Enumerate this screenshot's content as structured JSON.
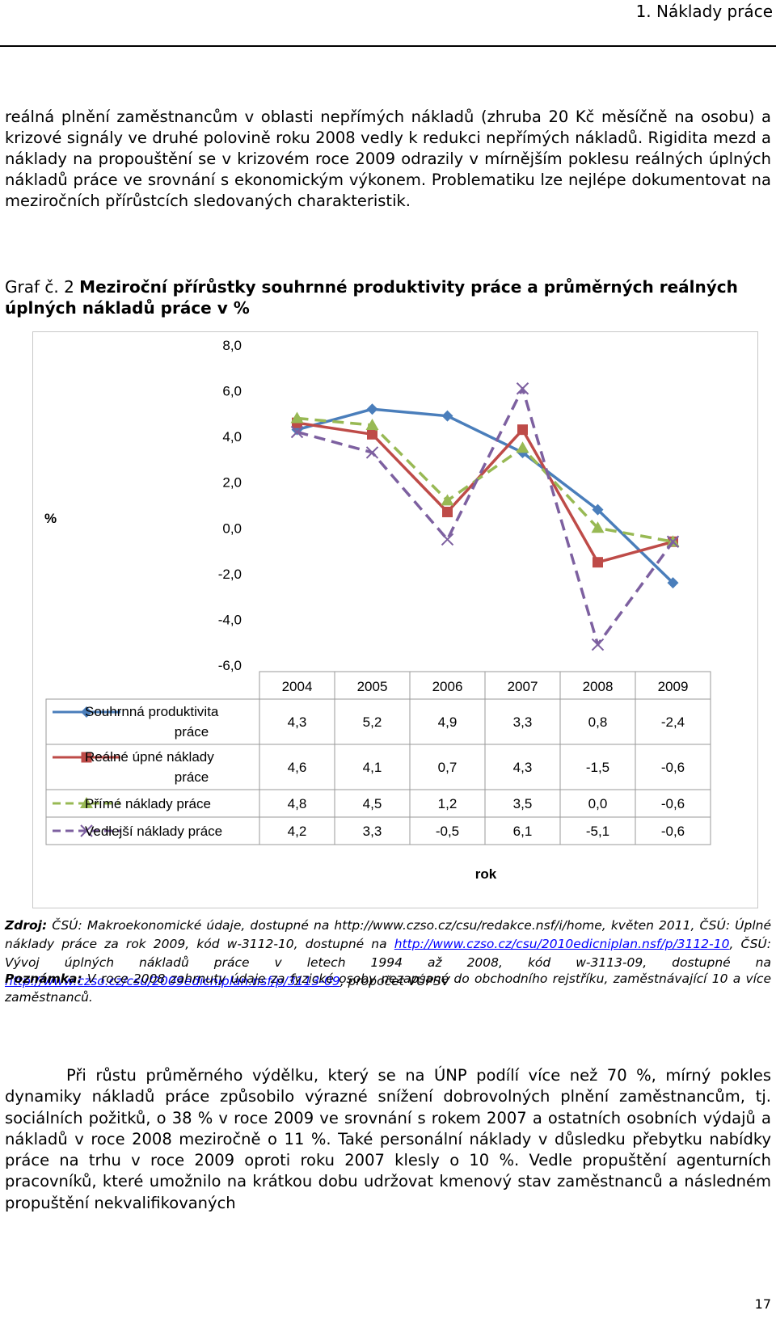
{
  "header": {
    "title": "1. Náklady práce"
  },
  "paragraph1": "reálná plnění zaměstnancům v oblasti nepřímých nákladů (zhruba 20 Kč měsíčně na osobu) a krizové signály ve druhé polovině roku 2008 vedly k redukci nepřímých nákladů. Rigidita mezd a náklady na propouštění se v krizovém roce 2009 odrazily v mírnějším poklesu reálných úplných nákladů práce ve srovnání s ekonomickým výko­nem. Problematiku lze nejlépe dokumentovat na meziročních přírůstcích sledovaných charakteristik.",
  "caption": {
    "prefix": "Graf č. 2 ",
    "title": "Meziroční přírůstky souhrnné produktivity práce a průměrných reálných úplných nákladů práce v %"
  },
  "chart_data": {
    "type": "line",
    "ylabel": "%",
    "xlabel": "rok",
    "ylim": [
      -6,
      8
    ],
    "yticks": [
      "8,0",
      "6,0",
      "4,0",
      "2,0",
      "0,0",
      "-2,0",
      "-4,0",
      "-6,0"
    ],
    "categories": [
      "2004",
      "2005",
      "2006",
      "2007",
      "2008",
      "2009"
    ],
    "series": [
      {
        "name": "Souhrnná produktivita práce",
        "values": [
          4.3,
          5.2,
          4.9,
          3.3,
          0.8,
          -2.4
        ],
        "labels": [
          "4,3",
          "5,2",
          "4,9",
          "3,3",
          "0,8",
          "-2,4"
        ],
        "color": "#4a7ebb",
        "marker": "diamond",
        "dash": ""
      },
      {
        "name": "Reálné úpné náklady práce",
        "values": [
          4.6,
          4.1,
          0.7,
          4.3,
          -1.5,
          -0.6
        ],
        "labels": [
          "4,6",
          "4,1",
          "0,7",
          "4,3",
          "-1,5",
          "-0,6"
        ],
        "color": "#be4b48",
        "marker": "square",
        "dash": ""
      },
      {
        "name": "Přímé náklady práce",
        "values": [
          4.8,
          4.5,
          1.2,
          3.5,
          0.0,
          -0.6
        ],
        "labels": [
          "4,8",
          "4,5",
          "1,2",
          "3,5",
          "0,0",
          "-0,6"
        ],
        "color": "#98b954",
        "marker": "triangle",
        "dash": "14,8"
      },
      {
        "name": "Vedlejší náklady práce",
        "values": [
          4.2,
          3.3,
          -0.5,
          6.1,
          -5.1,
          -0.6
        ],
        "labels": [
          "4,2",
          "3,3",
          "-0,5",
          "6,1",
          "-5,1",
          "-0,6"
        ],
        "color": "#7d60a0",
        "marker": "x",
        "dash": "14,8"
      }
    ]
  },
  "source": {
    "label": "Zdroj:",
    "text1": " ČSÚ: Makroekonomické údaje, dostupné na http://www.czso.cz/csu/redakce.nsf/i/home, květen 2011, ČSÚ: Úplné náklady práce za rok 2009, kód w-3112-10, dostupné na ",
    "link1": "http://www.czso.cz/csu/2010edicniplan.nsf/p/3112-10",
    "text2": ", ČSÚ: Vývoj úplných nákladů práce v letech 1994 až 2008, kód w-3113-09, dostupné na ",
    "link2": "http://www.czso.cz/csu/2009edicniplan.nsf/p/3113-09",
    "text3": ", propočet VÚPSV"
  },
  "note": {
    "label": "Poznámka:",
    "text": " V roce 2008 zahrnuty údaje za fyzické osoby nezapsané do obchodního rejstříku, zaměstnávající 10 a více zaměstnanců."
  },
  "paragraph2": "Při růstu průměrného výdělku, který se na ÚNP podílí více než 70 %, mírný pokles dynamiky nákladů práce způsobilo výrazné snížení dobrovolných plnění zaměst­nancům, tj. sociálních požitků, o 38 % v roce 2009 ve srovnání s rokem 2007 a ostatních osobních výdajů a nákladů v roce 2008 meziročně o 11 %. Také personální náklady v důsledku přebytku nabídky práce na trhu v roce 2009 oproti roku 2007 klesly o 10 %. Vedle propuštění agenturních pracovníků, které umožnilo na krátkou dobu udržovat kmenový stav zaměstnanců a následném propuštění nekvalifikovaných",
  "page_number": "17"
}
